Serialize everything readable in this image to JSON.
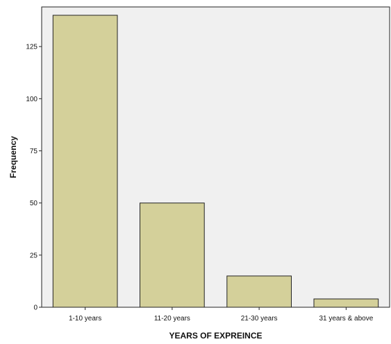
{
  "chart_data": {
    "type": "bar",
    "categories": [
      "1-10 years",
      "11-20 years",
      "21-30 years",
      "31 years & above"
    ],
    "values": [
      140,
      50,
      15,
      4
    ],
    "xlabel": "YEARS OF EXPREINCE",
    "ylabel": "Frequency",
    "ylim": [
      0,
      145
    ],
    "yticks": [
      0,
      25,
      50,
      75,
      100,
      125
    ],
    "grid": false,
    "colors": {
      "plot_background": "#f0f0f0",
      "bar_fill": "#d4d09a",
      "bar_stroke": "#222222",
      "axis": "#222222"
    }
  }
}
